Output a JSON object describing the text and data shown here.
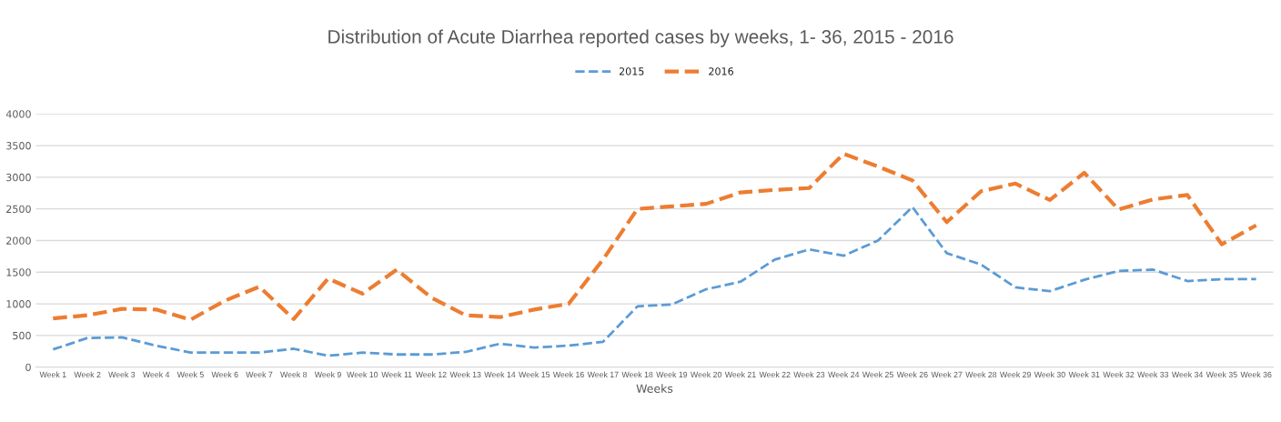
{
  "chart_data": {
    "type": "line",
    "title": "Distribution of Acute Diarrhea reported cases by weeks, 1- 36, 2015 - 2016",
    "xlabel": "Weeks",
    "categories": [
      "Week 1",
      "Week 2",
      "Week 3",
      "Week 4",
      "Week 5",
      "Week 6",
      "Week 7",
      "Week 8",
      "Week 9",
      "Week 10",
      "Week 11",
      "Week 12",
      "Week 13",
      "Week 14",
      "Week 15",
      "Week 16",
      "Week 17",
      "Week 18",
      "Week 19",
      "Week 20",
      "Week 21",
      "Week 22",
      "Week 23",
      "Week 24",
      "Week 25",
      "Week 26",
      "Week 27",
      "Week 28",
      "Week 29",
      "Week 30",
      "Week 31",
      "Week 32",
      "Week 33",
      "Week 34",
      "Week 35",
      "Week 36"
    ],
    "series": [
      {
        "name": "2015",
        "color": "#5b9bd5",
        "line_style": "dashed",
        "values": [
          280,
          460,
          470,
          340,
          230,
          230,
          230,
          290,
          180,
          230,
          200,
          200,
          240,
          370,
          310,
          340,
          400,
          960,
          990,
          1230,
          1350,
          1700,
          1860,
          1760,
          2000,
          2530,
          1800,
          1620,
          1260,
          1200,
          1380,
          1520,
          1540,
          1360,
          1390,
          1390
        ]
      },
      {
        "name": "2016",
        "color": "#ed7d31",
        "line_style": "dashed",
        "values": [
          770,
          820,
          920,
          910,
          750,
          1050,
          1270,
          760,
          1400,
          1160,
          1540,
          1100,
          820,
          790,
          910,
          1000,
          1700,
          2500,
          2540,
          2580,
          2760,
          2800,
          2830,
          3370,
          3170,
          2950,
          2290,
          2780,
          2900,
          2640,
          3070,
          2490,
          2650,
          2720,
          1940,
          2240
        ]
      }
    ],
    "ylim": [
      0,
      4000
    ],
    "yticks": [
      0,
      500,
      1000,
      1500,
      2000,
      2500,
      3000,
      3500,
      4000
    ],
    "grid": "y",
    "legend": "top",
    "marker": "none"
  }
}
